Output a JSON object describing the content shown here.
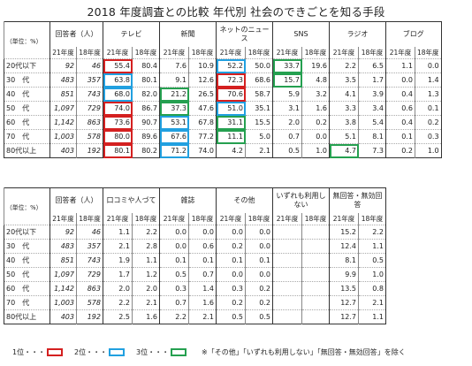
{
  "title": "2018 年度調査との比較 年代別 社会のできごとを知る手段",
  "unit_label": "（単位：%）",
  "table1": {
    "headers": [
      "回答者（人）",
      "テレビ",
      "新聞",
      "ネットのニュース",
      "SNS",
      "ラジオ",
      "ブログ"
    ],
    "year_labels": [
      "21年度",
      "18年度"
    ],
    "rows": [
      {
        "label": "20代以下",
        "n21": "92",
        "n18": "46",
        "cells": [
          [
            "55.4",
            "80.4"
          ],
          [
            "7.6",
            "10.9"
          ],
          [
            "52.2",
            "50.0"
          ],
          [
            "33.7",
            "19.6"
          ],
          [
            "2.2",
            "6.5"
          ],
          [
            "1.1",
            "0.0"
          ]
        ],
        "marks": [
          1,
          0,
          2,
          3,
          0,
          0
        ]
      },
      {
        "label": "30　代",
        "n21": "483",
        "n18": "357",
        "cells": [
          [
            "63.8",
            "80.1"
          ],
          [
            "9.1",
            "12.6"
          ],
          [
            "72.3",
            "68.6"
          ],
          [
            "15.7",
            "4.8"
          ],
          [
            "3.5",
            "1.7"
          ],
          [
            "0.0",
            "1.4"
          ]
        ],
        "marks": [
          2,
          0,
          1,
          3,
          0,
          0
        ]
      },
      {
        "label": "40　代",
        "n21": "851",
        "n18": "743",
        "cells": [
          [
            "68.0",
            "82.0"
          ],
          [
            "21.2",
            "26.5"
          ],
          [
            "70.6",
            "58.7"
          ],
          [
            "5.9",
            "3.2"
          ],
          [
            "4.1",
            "3.9"
          ],
          [
            "0.4",
            "1.3"
          ]
        ],
        "marks": [
          2,
          3,
          1,
          0,
          0,
          0
        ]
      },
      {
        "label": "50　代",
        "n21": "1,097",
        "n18": "729",
        "cells": [
          [
            "74.0",
            "86.7"
          ],
          [
            "37.3",
            "47.6"
          ],
          [
            "51.0",
            "35.1"
          ],
          [
            "3.1",
            "1.6"
          ],
          [
            "3.3",
            "3.4"
          ],
          [
            "0.6",
            "0.1"
          ]
        ],
        "marks": [
          1,
          3,
          2,
          0,
          0,
          0
        ]
      },
      {
        "label": "60　代",
        "n21": "1,142",
        "n18": "863",
        "cells": [
          [
            "73.6",
            "90.7"
          ],
          [
            "53.1",
            "67.8"
          ],
          [
            "31.1",
            "15.5"
          ],
          [
            "2.0",
            "0.2"
          ],
          [
            "3.8",
            "5.4"
          ],
          [
            "0.4",
            "0.2"
          ]
        ],
        "marks": [
          1,
          2,
          3,
          0,
          0,
          0
        ]
      },
      {
        "label": "70　代",
        "n21": "1,003",
        "n18": "578",
        "cells": [
          [
            "80.0",
            "89.6"
          ],
          [
            "67.6",
            "77.2"
          ],
          [
            "11.1",
            "5.0"
          ],
          [
            "0.7",
            "0.0"
          ],
          [
            "5.1",
            "8.1"
          ],
          [
            "0.1",
            "0.3"
          ]
        ],
        "marks": [
          1,
          2,
          3,
          0,
          0,
          0
        ]
      },
      {
        "label": "80代以上",
        "n21": "403",
        "n18": "192",
        "cells": [
          [
            "80.1",
            "80.2"
          ],
          [
            "71.2",
            "74.0"
          ],
          [
            "4.2",
            "2.1"
          ],
          [
            "0.5",
            "1.0"
          ],
          [
            "4.7",
            "7.3"
          ],
          [
            "0.2",
            "1.0"
          ]
        ],
        "marks": [
          1,
          2,
          0,
          0,
          3,
          0
        ]
      }
    ]
  },
  "table2": {
    "headers": [
      "回答者（人）",
      "口コミや人づて",
      "雑誌",
      "その他",
      "いずれも利用しない",
      "無回答・無効回答"
    ],
    "year_labels": [
      "21年度",
      "18年度"
    ],
    "rows": [
      {
        "label": "20代以下",
        "n21": "92",
        "n18": "46",
        "cells": [
          [
            "1.1",
            "2.2"
          ],
          [
            "0.0",
            "0.0"
          ],
          [
            "0.0",
            "0.0"
          ],
          [
            "",
            ""
          ],
          [
            "15.2",
            "2.2"
          ]
        ]
      },
      {
        "label": "30　代",
        "n21": "483",
        "n18": "357",
        "cells": [
          [
            "2.1",
            "2.8"
          ],
          [
            "0.0",
            "0.6"
          ],
          [
            "0.2",
            "0.0"
          ],
          [
            "",
            ""
          ],
          [
            "12.4",
            "1.1"
          ]
        ]
      },
      {
        "label": "40　代",
        "n21": "851",
        "n18": "743",
        "cells": [
          [
            "1.9",
            "1.1"
          ],
          [
            "0.1",
            "0.1"
          ],
          [
            "0.1",
            "0.1"
          ],
          [
            "",
            ""
          ],
          [
            "8.1",
            "0.5"
          ]
        ]
      },
      {
        "label": "50　代",
        "n21": "1,097",
        "n18": "729",
        "cells": [
          [
            "1.7",
            "1.2"
          ],
          [
            "0.5",
            "0.7"
          ],
          [
            "0.0",
            "0.0"
          ],
          [
            "",
            ""
          ],
          [
            "9.9",
            "1.0"
          ]
        ]
      },
      {
        "label": "60　代",
        "n21": "1,142",
        "n18": "863",
        "cells": [
          [
            "2.0",
            "2.0"
          ],
          [
            "0.3",
            "1.4"
          ],
          [
            "0.3",
            "0.2"
          ],
          [
            "",
            ""
          ],
          [
            "13.5",
            "0.8"
          ]
        ]
      },
      {
        "label": "70　代",
        "n21": "1,003",
        "n18": "578",
        "cells": [
          [
            "2.2",
            "2.1"
          ],
          [
            "0.7",
            "1.6"
          ],
          [
            "0.2",
            "0.2"
          ],
          [
            "",
            ""
          ],
          [
            "12.7",
            "2.1"
          ]
        ]
      },
      {
        "label": "80代以上",
        "n21": "403",
        "n18": "192",
        "cells": [
          [
            "2.5",
            "1.6"
          ],
          [
            "2.2",
            "2.1"
          ],
          [
            "0.5",
            "0.5"
          ],
          [
            "",
            ""
          ],
          [
            "12.7",
            "1.1"
          ]
        ]
      }
    ],
    "extra_values": {
      "0.0": "0.0",
      "0.5": "0.5"
    }
  },
  "legend": {
    "rank1": "1位・・・",
    "rank2": "2位・・・",
    "rank3": "3位・・・",
    "note": "※「その他」「いずれも利用しない」「無回答・無効回答」を除く"
  },
  "colors": {
    "rank1": "#d42020",
    "rank2": "#21a0e0",
    "rank3": "#25a050"
  }
}
